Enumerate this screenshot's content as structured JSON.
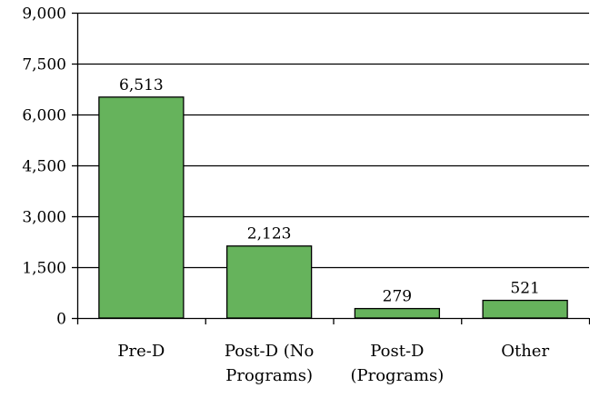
{
  "chart_data": {
    "type": "bar",
    "title": "",
    "xlabel": "",
    "ylabel": "",
    "categories": [
      [
        "Pre-D"
      ],
      [
        "Post-D (No",
        "Programs)"
      ],
      [
        "Post-D",
        "(Programs)"
      ],
      [
        "Other"
      ]
    ],
    "values": [
      6513,
      2123,
      279,
      521
    ],
    "data_labels": [
      "6,513",
      "2,123",
      "279",
      "521"
    ],
    "ylim": [
      0,
      9000
    ],
    "yticks": [
      0,
      1500,
      3000,
      4500,
      6000,
      7500,
      9000
    ],
    "ytick_labels": [
      "0",
      "1,500",
      "3,000",
      "4,500",
      "6,000",
      "7,500",
      "9,000"
    ],
    "grid": true,
    "legend": "none",
    "bar_color": "#66b35c",
    "bar_edge_color": "#000000"
  }
}
